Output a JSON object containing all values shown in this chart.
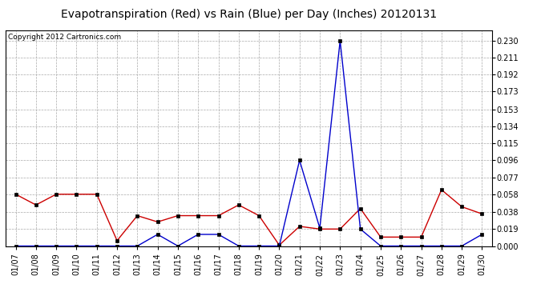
{
  "title": "Evapotranspiration (Red) vs Rain (Blue) per Day (Inches) 20120131",
  "copyright": "Copyright 2012 Cartronics.com",
  "dates": [
    "01/07",
    "01/08",
    "01/09",
    "01/10",
    "01/11",
    "01/12",
    "01/13",
    "01/14",
    "01/15",
    "01/16",
    "01/17",
    "01/18",
    "01/19",
    "01/20",
    "01/21",
    "01/22",
    "01/23",
    "01/24",
    "01/25",
    "01/26",
    "01/27",
    "01/28",
    "01/29",
    "01/30"
  ],
  "et_red": [
    0.058,
    0.046,
    0.058,
    0.058,
    0.058,
    0.006,
    0.034,
    0.027,
    0.034,
    0.034,
    0.034,
    0.046,
    0.034,
    0.001,
    0.022,
    0.019,
    0.019,
    0.042,
    0.01,
    0.01,
    0.01,
    0.063,
    0.044,
    0.036
  ],
  "rain_blue": [
    0.0,
    0.0,
    0.0,
    0.0,
    0.0,
    0.0,
    0.0,
    0.013,
    0.0,
    0.013,
    0.013,
    0.0,
    0.0,
    0.0,
    0.096,
    0.02,
    0.23,
    0.019,
    0.0,
    0.0,
    0.0,
    0.0,
    0.0,
    0.013
  ],
  "ylim": [
    0.0,
    0.242
  ],
  "yticks": [
    0.0,
    0.019,
    0.038,
    0.058,
    0.077,
    0.096,
    0.115,
    0.134,
    0.153,
    0.173,
    0.192,
    0.211,
    0.23
  ],
  "bg_color": "#FFFFFF",
  "plot_bg_color": "#FFFFFF",
  "grid_color": "#AAAAAA",
  "red_color": "#CC0000",
  "blue_color": "#0000CC",
  "title_fontsize": 10,
  "copyright_fontsize": 6.5,
  "tick_fontsize": 7,
  "marker_size": 3
}
